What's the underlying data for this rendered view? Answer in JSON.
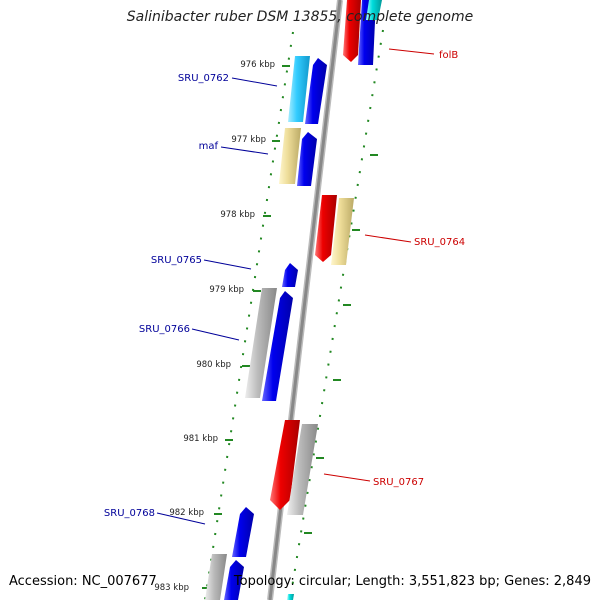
{
  "title": "Salinibacter ruber DSM 13855, complete genome",
  "footer": {
    "accession": "Accession: NC_007677",
    "info": "Topology: circular; Length: 3,551,823 bp; Genes: 2,849"
  },
  "colors": {
    "forward_gene": "#0000ee",
    "reverse_gene": "#ee0000",
    "reverse_label": "#cc0000",
    "forward_label": "#000099",
    "rna_light_blue": "#33ccff",
    "cyan": "#00dddd",
    "yellow_feature": "#eedd99",
    "gray_feature": "#bbbbbb",
    "backbone": "#888888",
    "tick": "#228822"
  },
  "ticks": [
    "976 kbp",
    "977 kbp",
    "978 kbp",
    "979 kbp",
    "980 kbp",
    "981 kbp",
    "982 kbp",
    "983 kbp"
  ],
  "labels": [
    {
      "text": "folB",
      "side": "right"
    },
    {
      "text": "SRU_0762",
      "side": "left"
    },
    {
      "text": "maf",
      "side": "left"
    },
    {
      "text": "SRU_0764",
      "side": "right"
    },
    {
      "text": "SRU_0765",
      "side": "left"
    },
    {
      "text": "SRU_0766",
      "side": "left"
    },
    {
      "text": "SRU_0767",
      "side": "right"
    },
    {
      "text": "SRU_0768",
      "side": "left"
    }
  ]
}
